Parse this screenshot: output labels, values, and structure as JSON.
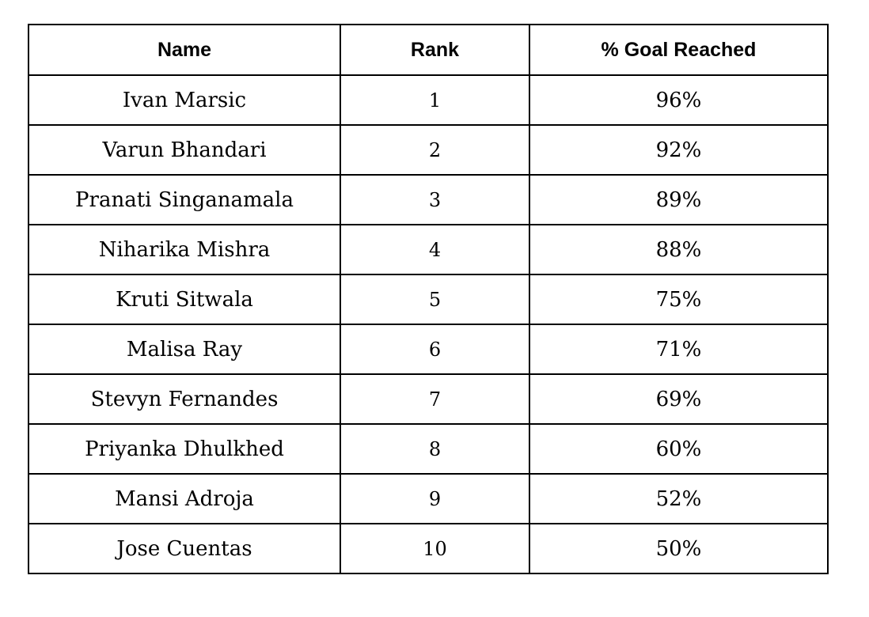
{
  "table": {
    "headers": {
      "name": "Name",
      "rank": "Rank",
      "goal": "% Goal Reached"
    },
    "rows": [
      {
        "name": "Ivan Marsic",
        "rank": "1",
        "goal": "96%"
      },
      {
        "name": "Varun Bhandari",
        "rank": "2",
        "goal": "92%"
      },
      {
        "name": "Pranati Singanamala",
        "rank": "3",
        "goal": "89%"
      },
      {
        "name": "Niharika Mishra",
        "rank": "4",
        "goal": "88%"
      },
      {
        "name": "Kruti Sitwala",
        "rank": "5",
        "goal": "75%"
      },
      {
        "name": "Malisa Ray",
        "rank": "6",
        "goal": "71%"
      },
      {
        "name": "Stevyn Fernandes",
        "rank": "7",
        "goal": "69%"
      },
      {
        "name": "Priyanka Dhulkhed",
        "rank": "8",
        "goal": "60%"
      },
      {
        "name": "Mansi Adroja",
        "rank": "9",
        "goal": "52%"
      },
      {
        "name": "Jose Cuentas",
        "rank": "10",
        "goal": "50%"
      }
    ]
  }
}
